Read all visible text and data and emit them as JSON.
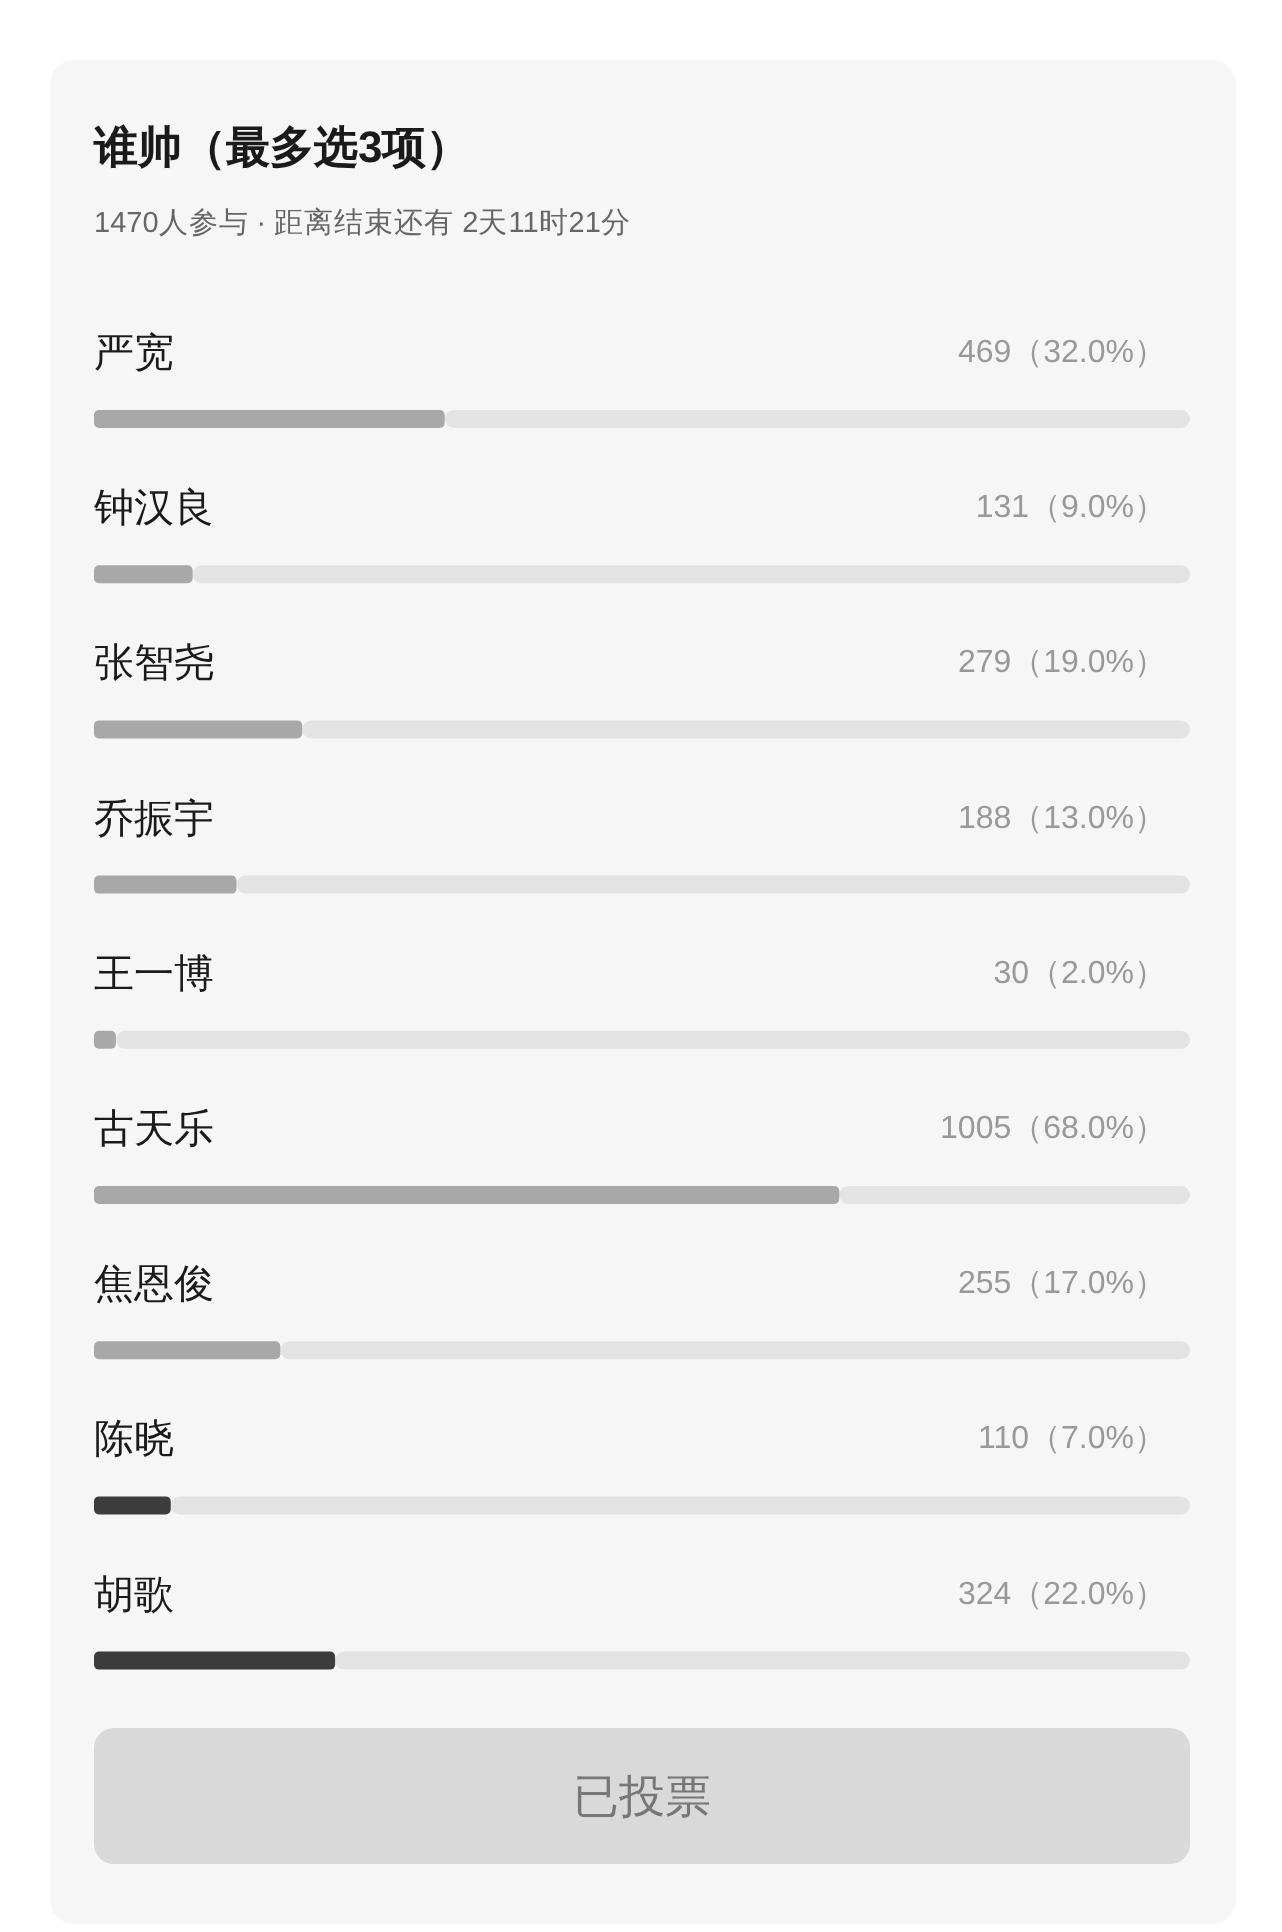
{
  "chart_data": {
    "type": "bar",
    "orientation": "horizontal",
    "title": "谁帅（最多选3项）",
    "subtitle": "1470人参与 · 距离结束还有 2天11时21分",
    "categories": [
      "严宽",
      "钟汉良",
      "张智尧",
      "乔振宇",
      "王一博",
      "古天乐",
      "焦恩俊",
      "陈晓",
      "胡歌"
    ],
    "values": [
      32.0,
      9.0,
      19.0,
      13.0,
      2.0,
      68.0,
      17.0,
      7.0,
      22.0
    ],
    "value_labels": [
      "469（32.0%）",
      "131（9.0%）",
      "279（19.0%）",
      "188（13.0%）",
      "30（2.0%）",
      "1005（68.0%）",
      "255（17.0%）",
      "110（7.0%）",
      "324（22.0%）"
    ],
    "colors": [
      "#a8a8a8",
      "#a8a8a8",
      "#a8a8a8",
      "#a8a8a8",
      "#a8a8a8",
      "#a8a8a8",
      "#a8a8a8",
      "#3c3c3c",
      "#3c3c3c"
    ],
    "xlim": [
      0,
      100
    ],
    "tick_labels": "y",
    "annotations": [
      "已投票"
    ]
  }
}
